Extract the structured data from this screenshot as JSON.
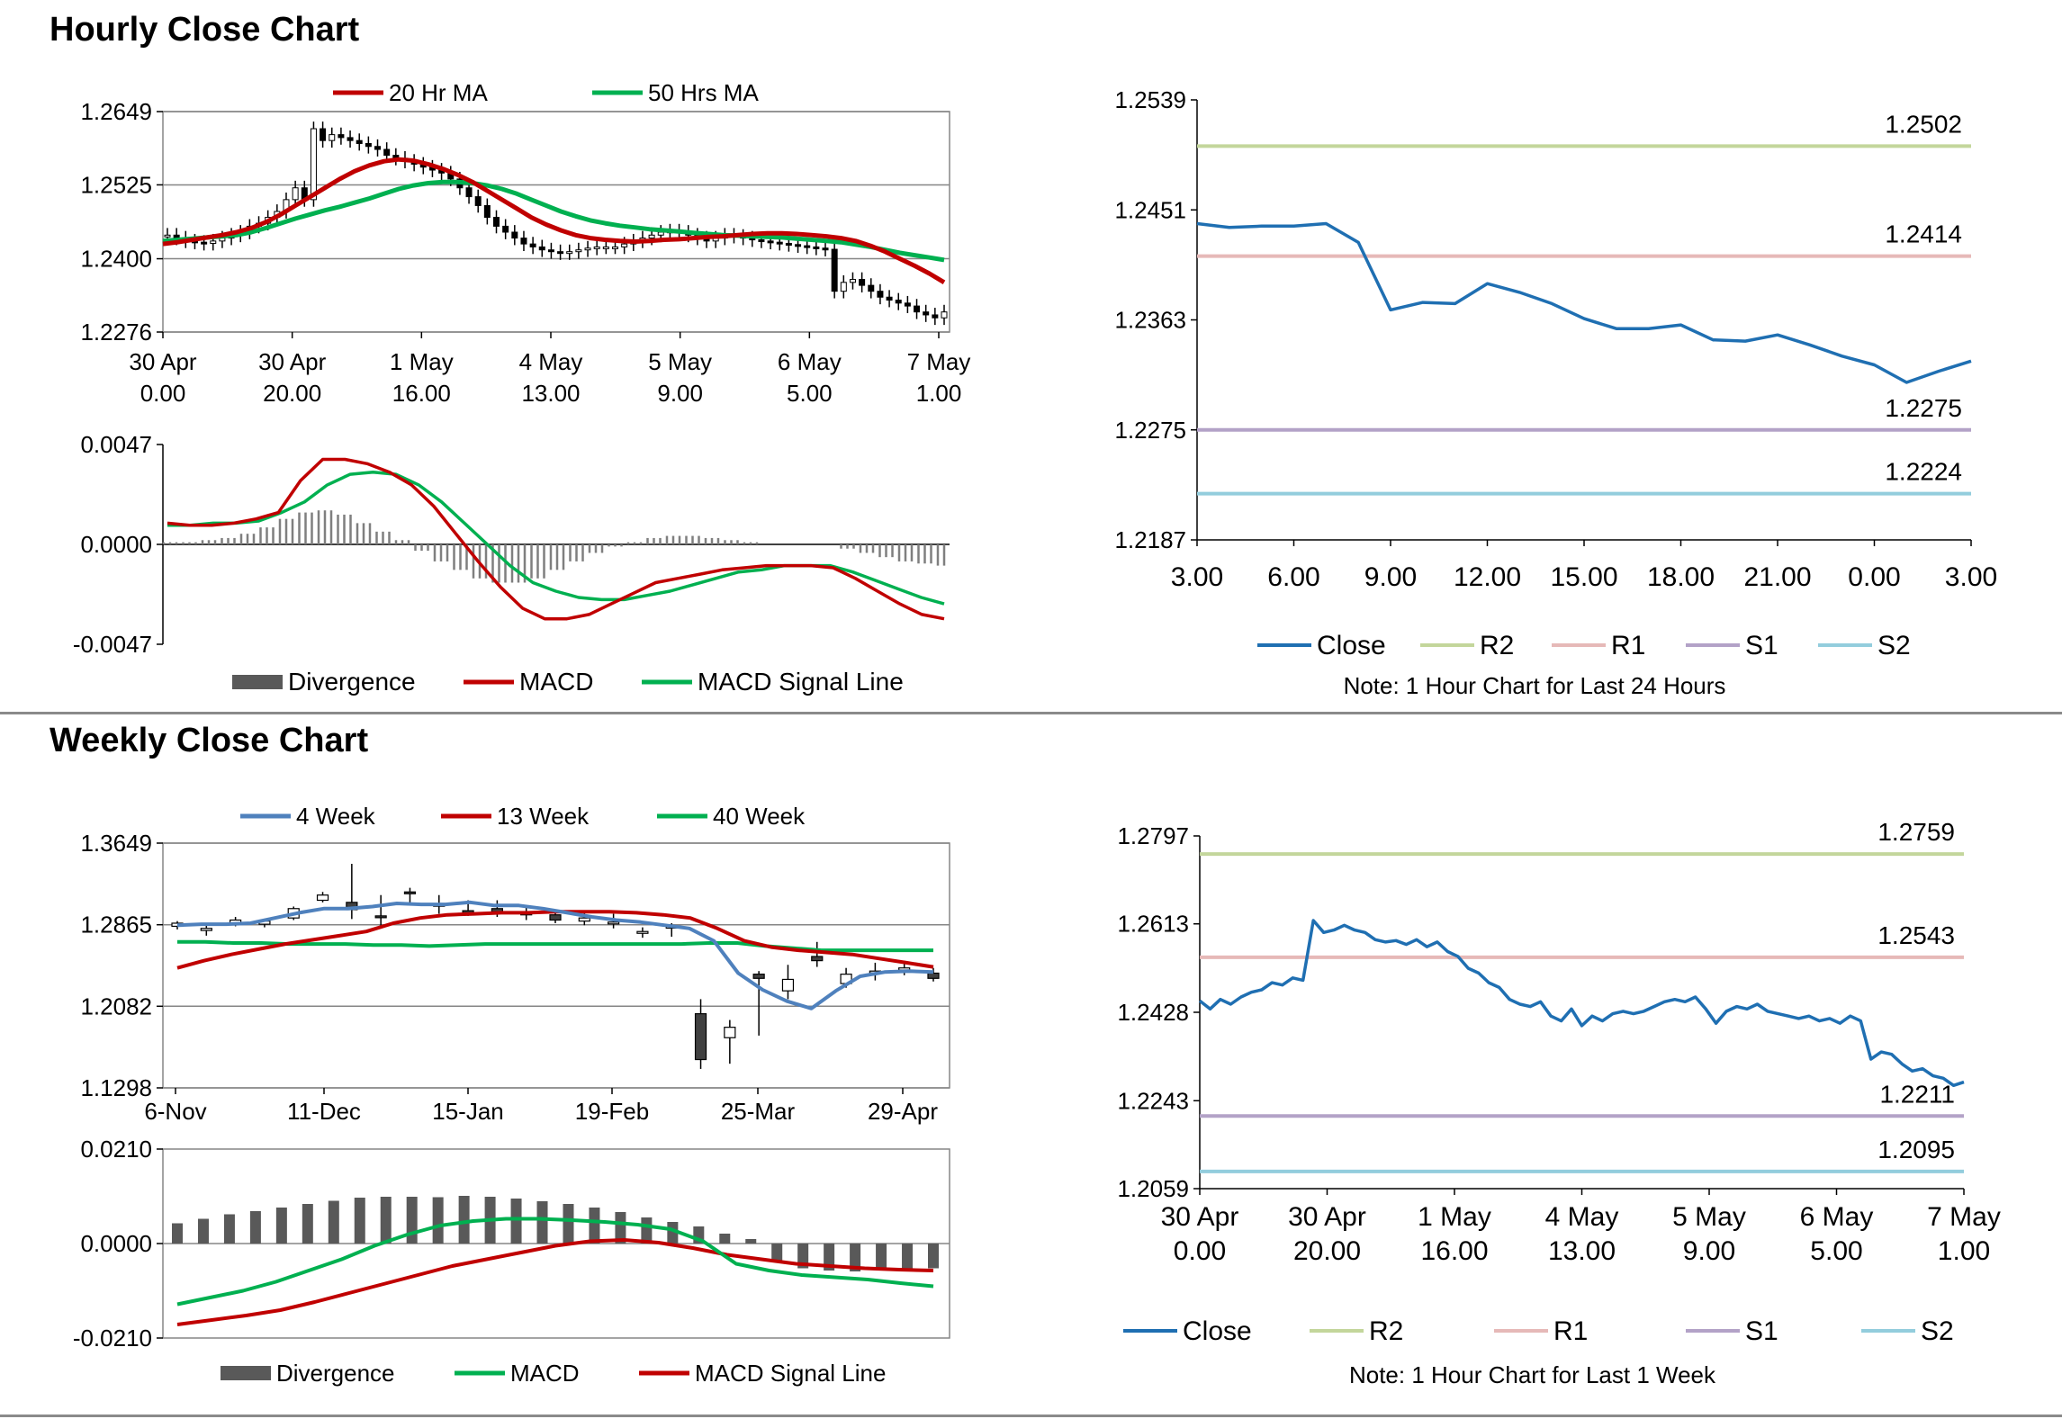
{
  "hourly_section": {
    "title": "Hourly Close Chart"
  },
  "weekly_section": {
    "title": "Weekly Close Chart"
  },
  "colors": {
    "red": "#c00000",
    "green": "#00b050",
    "blue": "#4f81bd",
    "close": "#1f6fb2",
    "r2": "#c3d69b",
    "r1": "#e6b9b8",
    "s1": "#b3a2c7",
    "s2": "#93cddd",
    "grid": "#868686",
    "bar": "#595959"
  },
  "chart_data": [
    {
      "id": "hourly_price",
      "type": "candlestick",
      "legend": [
        "20 Hr MA",
        "50 Hrs MA"
      ],
      "y_ticks": [
        "1.2649",
        "1.2525",
        "1.2400",
        "1.2276"
      ],
      "ylim": [
        1.2276,
        1.2649
      ],
      "x_ticks": [
        [
          "30 Apr",
          "0.00"
        ],
        [
          "30 Apr",
          "20.00"
        ],
        [
          "1 May",
          "16.00"
        ],
        [
          "4 May",
          "13.00"
        ],
        [
          "5 May",
          "9.00"
        ],
        [
          "6 May",
          "5.00"
        ],
        [
          "7 May",
          "1.00"
        ]
      ],
      "close": [
        1.244,
        1.2435,
        1.243,
        1.2428,
        1.2426,
        1.243,
        1.2435,
        1.244,
        1.2445,
        1.2455,
        1.246,
        1.247,
        1.248,
        1.25,
        1.252,
        1.25,
        1.262,
        1.26,
        1.261,
        1.2605,
        1.26,
        1.2595,
        1.259,
        1.2585,
        1.2575,
        1.257,
        1.2565,
        1.256,
        1.2555,
        1.255,
        1.2545,
        1.2535,
        1.252,
        1.2505,
        1.249,
        1.247,
        1.2455,
        1.2445,
        1.2435,
        1.2425,
        1.242,
        1.2415,
        1.2412,
        1.241,
        1.2412,
        1.2415,
        1.2418,
        1.242,
        1.242,
        1.242,
        1.2425,
        1.243,
        1.2435,
        1.244,
        1.2445,
        1.2447,
        1.2445,
        1.244,
        1.2435,
        1.243,
        1.2435,
        1.244,
        1.2438,
        1.2435,
        1.2432,
        1.243,
        1.2428,
        1.2426,
        1.2424,
        1.2422,
        1.242,
        1.2418,
        1.2416,
        1.2345,
        1.236,
        1.2365,
        1.2355,
        1.2345,
        1.2335,
        1.233,
        1.2325,
        1.232,
        1.231,
        1.2305,
        1.23,
        1.231
      ],
      "series": [
        {
          "name": "20 Hr MA",
          "values": [
            1.2425,
            1.2428,
            1.2432,
            1.2436,
            1.244,
            1.2445,
            1.2452,
            1.2462,
            1.2475,
            1.249,
            1.2505,
            1.252,
            1.2535,
            1.2548,
            1.2558,
            1.2565,
            1.2568,
            1.2566,
            1.256,
            1.2552,
            1.2542,
            1.253,
            1.2515,
            1.25,
            1.2485,
            1.247,
            1.2458,
            1.2448,
            1.244,
            1.2435,
            1.2432,
            1.243,
            1.2429,
            1.243,
            1.2432,
            1.2433,
            1.2435,
            1.2437,
            1.2438,
            1.244,
            1.2442,
            1.2443,
            1.2443,
            1.2442,
            1.244,
            1.2438,
            1.2435,
            1.243,
            1.2422,
            1.2412,
            1.24,
            1.2388,
            1.2375,
            1.236
          ]
        },
        {
          "name": "50 Hrs MA",
          "values": [
            1.243,
            1.2432,
            1.2434,
            1.2436,
            1.2438,
            1.244,
            1.2445,
            1.2452,
            1.246,
            1.2468,
            1.2475,
            1.2482,
            1.2488,
            1.2495,
            1.2502,
            1.251,
            1.2518,
            1.2524,
            1.2528,
            1.253,
            1.253,
            1.2528,
            1.2524,
            1.2518,
            1.251,
            1.25,
            1.249,
            1.248,
            1.2472,
            1.2465,
            1.246,
            1.2456,
            1.2453,
            1.245,
            1.2448,
            1.2446,
            1.2444,
            1.2442,
            1.244,
            1.2439,
            1.2438,
            1.2437,
            1.2436,
            1.2434,
            1.2432,
            1.243,
            1.2428,
            1.2424,
            1.242,
            1.2415,
            1.241,
            1.2406,
            1.2402,
            1.2398
          ]
        }
      ]
    },
    {
      "id": "hourly_macd",
      "type": "bar+line",
      "legend": [
        "Divergence",
        "MACD",
        "MACD Signal Line"
      ],
      "y_ticks": [
        "0.0047",
        "0.0000",
        "-0.0047"
      ],
      "ylim": [
        -0.0047,
        0.0047
      ],
      "divergence": [
        0.0001,
        0.0001,
        0.0002,
        0.0003,
        0.0005,
        0.0008,
        0.0012,
        0.0015,
        0.0016,
        0.0014,
        0.001,
        0.0006,
        0.0002,
        -0.0003,
        -0.0008,
        -0.0012,
        -0.0016,
        -0.0018,
        -0.0018,
        -0.0016,
        -0.0012,
        -0.0008,
        -0.0004,
        -0.0001,
        0.0001,
        0.0003,
        0.0004,
        0.0004,
        0.0003,
        0.0002,
        0.0001,
        0.0,
        0.0,
        0.0,
        0.0,
        -0.0002,
        -0.0004,
        -0.0006,
        -0.0008,
        -0.0009,
        -0.001
      ],
      "series": [
        {
          "name": "MACD",
          "values": [
            0.001,
            0.0009,
            0.0009,
            0.001,
            0.0012,
            0.0015,
            0.003,
            0.004,
            0.004,
            0.0038,
            0.0034,
            0.0028,
            0.0018,
            0.0005,
            -0.0008,
            -0.002,
            -0.003,
            -0.0035,
            -0.0035,
            -0.0033,
            -0.0028,
            -0.0023,
            -0.0018,
            -0.0016,
            -0.0014,
            -0.0012,
            -0.0011,
            -0.001,
            -0.001,
            -0.001,
            -0.0011,
            -0.0016,
            -0.0022,
            -0.0028,
            -0.0033,
            -0.0035
          ]
        },
        {
          "name": "MACD Signal Line",
          "values": [
            0.0009,
            0.0009,
            0.001,
            0.001,
            0.0011,
            0.0015,
            0.002,
            0.0028,
            0.0033,
            0.0034,
            0.0033,
            0.0028,
            0.002,
            0.001,
            0.0,
            -0.001,
            -0.0018,
            -0.0022,
            -0.0025,
            -0.0026,
            -0.0026,
            -0.0024,
            -0.0022,
            -0.0019,
            -0.0016,
            -0.0013,
            -0.0012,
            -0.001,
            -0.001,
            -0.001,
            -0.0013,
            -0.0017,
            -0.0021,
            -0.0025,
            -0.0028
          ]
        }
      ]
    },
    {
      "id": "hourly_24h",
      "type": "line",
      "y_ticks": [
        "1.2539",
        "1.2451",
        "1.2363",
        "1.2275",
        "1.2187"
      ],
      "ylim": [
        1.2187,
        1.2539
      ],
      "x_ticks": [
        "3.00",
        "6.00",
        "9.00",
        "12.00",
        "15.00",
        "18.00",
        "21.00",
        "0.00",
        "3.00"
      ],
      "levels": [
        {
          "name": "R2",
          "value": 1.2502,
          "label": "1.2502"
        },
        {
          "name": "R1",
          "value": 1.2414,
          "label": "1.2414"
        },
        {
          "name": "S1",
          "value": 1.2275,
          "label": "1.2275"
        },
        {
          "name": "S2",
          "value": 1.2224,
          "label": "1.2224"
        }
      ],
      "close": [
        1.244,
        1.2437,
        1.2438,
        1.2438,
        1.244,
        1.2425,
        1.2371,
        1.2377,
        1.2376,
        1.2392,
        1.2385,
        1.2376,
        1.2364,
        1.2356,
        1.2356,
        1.2359,
        1.2347,
        1.2346,
        1.2351,
        1.2343,
        1.2334,
        1.2327,
        1.2313,
        1.2322,
        1.233
      ],
      "legend": [
        "Close",
        "R2",
        "R1",
        "S1",
        "S2"
      ],
      "note": "Note: 1 Hour Chart for Last 24 Hours"
    },
    {
      "id": "weekly_price",
      "type": "candlestick",
      "legend": [
        "4 Week",
        "13 Week",
        "40 Week"
      ],
      "y_ticks": [
        "1.3649",
        "1.2865",
        "1.2082",
        "1.1298"
      ],
      "ylim": [
        1.1298,
        1.3649
      ],
      "x_ticks": [
        "6-Nov",
        "11-Dec",
        "15-Jan",
        "19-Feb",
        "25-Mar",
        "29-Apr"
      ],
      "candles": [
        [
          1.285,
          1.288,
          1.282,
          1.29
        ],
        [
          1.281,
          1.283,
          1.276,
          1.286
        ],
        [
          1.288,
          1.291,
          1.285,
          1.294
        ],
        [
          1.287,
          1.29,
          1.284,
          1.292
        ],
        [
          1.293,
          1.302,
          1.291,
          1.304
        ],
        [
          1.31,
          1.315,
          1.308,
          1.318
        ],
        [
          1.308,
          1.301,
          1.292,
          1.345
        ],
        [
          1.295,
          1.294,
          1.283,
          1.315
        ],
        [
          1.318,
          1.317,
          1.305,
          1.322
        ],
        [
          1.306,
          1.305,
          1.297,
          1.315
        ],
        [
          1.3,
          1.298,
          1.295,
          1.31
        ],
        [
          1.302,
          1.299,
          1.294,
          1.31
        ],
        [
          1.298,
          1.296,
          1.291,
          1.305
        ],
        [
          1.296,
          1.291,
          1.288,
          1.3
        ],
        [
          1.29,
          1.293,
          1.286,
          1.298
        ],
        [
          1.288,
          1.289,
          1.283,
          1.297
        ],
        [
          1.279,
          1.28,
          1.274,
          1.284
        ],
        [
          1.284,
          1.285,
          1.275,
          1.288
        ],
        [
          1.201,
          1.157,
          1.148,
          1.215
        ],
        [
          1.178,
          1.188,
          1.153,
          1.195
        ],
        [
          1.239,
          1.235,
          1.18,
          1.242
        ],
        [
          1.223,
          1.234,
          1.215,
          1.248
        ],
        [
          1.256,
          1.252,
          1.246,
          1.27
        ],
        [
          1.23,
          1.239,
          1.226,
          1.245
        ],
        [
          1.241,
          1.242,
          1.233,
          1.25
        ],
        [
          1.243,
          1.245,
          1.238,
          1.252
        ],
        [
          1.24,
          1.235,
          1.232,
          1.245
        ]
      ],
      "series": [
        {
          "name": "4 Week",
          "values": [
            1.286,
            1.287,
            1.287,
            1.288,
            1.293,
            1.298,
            1.302,
            1.302,
            1.304,
            1.307,
            1.306,
            1.306,
            1.308,
            1.305,
            1.305,
            1.302,
            1.298,
            1.294,
            1.291,
            1.289,
            1.286,
            1.283,
            1.271,
            1.24,
            1.224,
            1.213,
            1.206,
            1.223,
            1.237,
            1.241,
            1.242,
            1.241
          ]
        },
        {
          "name": "13 Week",
          "values": [
            1.245,
            1.252,
            1.258,
            1.263,
            1.268,
            1.272,
            1.276,
            1.28,
            1.288,
            1.293,
            1.296,
            1.297,
            1.298,
            1.298,
            1.299,
            1.299,
            1.299,
            1.298,
            1.296,
            1.293,
            1.283,
            1.271,
            1.265,
            1.262,
            1.26,
            1.258,
            1.254,
            1.25,
            1.246
          ]
        },
        {
          "name": "40 Week",
          "values": [
            1.27,
            1.27,
            1.269,
            1.269,
            1.268,
            1.268,
            1.268,
            1.267,
            1.267,
            1.266,
            1.267,
            1.268,
            1.268,
            1.268,
            1.268,
            1.268,
            1.268,
            1.268,
            1.268,
            1.269,
            1.269,
            1.266,
            1.264,
            1.262,
            1.262,
            1.262,
            1.262,
            1.262
          ]
        }
      ]
    },
    {
      "id": "weekly_macd",
      "type": "bar+line",
      "legend": [
        "Divergence",
        "MACD",
        "MACD Signal Line"
      ],
      "y_ticks": [
        "0.0210",
        "0.0000",
        "-0.0210"
      ],
      "ylim": [
        -0.021,
        0.021
      ],
      "divergence": [
        0.0045,
        0.0055,
        0.0065,
        0.0072,
        0.008,
        0.0088,
        0.0095,
        0.0102,
        0.0104,
        0.0104,
        0.0103,
        0.0106,
        0.0104,
        0.01,
        0.0094,
        0.0088,
        0.008,
        0.007,
        0.0058,
        0.0048,
        0.0038,
        0.0022,
        0.001,
        -0.004,
        -0.0055,
        -0.006,
        -0.0062,
        -0.006,
        -0.0058,
        -0.0055
      ],
      "series": [
        {
          "name": "MACD",
          "values": [
            -0.0135,
            -0.012,
            -0.0105,
            -0.0085,
            -0.006,
            -0.0035,
            -0.0005,
            0.002,
            0.004,
            0.005,
            0.0055,
            0.0055,
            0.0052,
            0.0048,
            0.0042,
            0.0032,
            0.0005,
            -0.0045,
            -0.006,
            -0.007,
            -0.0075,
            -0.008,
            -0.0088,
            -0.0095
          ]
        },
        {
          "name": "MACD Signal Line",
          "values": [
            -0.018,
            -0.017,
            -0.016,
            -0.0148,
            -0.013,
            -0.011,
            -0.009,
            -0.007,
            -0.005,
            -0.0035,
            -0.002,
            -0.0005,
            0.0005,
            0.0008,
            0.0002,
            -0.001,
            -0.0025,
            -0.0035,
            -0.0045,
            -0.005,
            -0.0055,
            -0.0058,
            -0.006
          ]
        }
      ]
    },
    {
      "id": "hourly_1w",
      "type": "line",
      "y_ticks": [
        "1.2797",
        "1.2613",
        "1.2428",
        "1.2243",
        "1.2059"
      ],
      "ylim": [
        1.2059,
        1.2797
      ],
      "x_ticks": [
        [
          "30 Apr",
          "0.00"
        ],
        [
          "30 Apr",
          "20.00"
        ],
        [
          "1 May",
          "16.00"
        ],
        [
          "4 May",
          "13.00"
        ],
        [
          "5 May",
          "9.00"
        ],
        [
          "6 May",
          "5.00"
        ],
        [
          "7 May",
          "1.00"
        ]
      ],
      "levels": [
        {
          "name": "R2",
          "value": 1.2759,
          "label": "1.2759"
        },
        {
          "name": "R1",
          "value": 1.2543,
          "label": "1.2543"
        },
        {
          "name": "S1",
          "value": 1.2211,
          "label": "1.2211"
        },
        {
          "name": "S2",
          "value": 1.2095,
          "label": "1.2095"
        }
      ],
      "close": [
        1.2452,
        1.2435,
        1.2455,
        1.2445,
        1.246,
        1.247,
        1.2475,
        1.249,
        1.2485,
        1.25,
        1.2495,
        1.262,
        1.2595,
        1.26,
        1.261,
        1.26,
        1.2595,
        1.258,
        1.2575,
        1.2578,
        1.257,
        1.258,
        1.2565,
        1.2575,
        1.2555,
        1.2545,
        1.252,
        1.251,
        1.249,
        1.248,
        1.2455,
        1.2445,
        1.244,
        1.245,
        1.242,
        1.241,
        1.2435,
        1.24,
        1.242,
        1.241,
        1.2425,
        1.243,
        1.2425,
        1.243,
        1.244,
        1.245,
        1.2455,
        1.245,
        1.246,
        1.2435,
        1.2405,
        1.243,
        1.244,
        1.2435,
        1.2445,
        1.243,
        1.2425,
        1.242,
        1.2415,
        1.242,
        1.241,
        1.2415,
        1.2405,
        1.242,
        1.241,
        1.233,
        1.2345,
        1.234,
        1.232,
        1.2305,
        1.231,
        1.2295,
        1.229,
        1.2275,
        1.2282
      ],
      "legend": [
        "Close",
        "R2",
        "R1",
        "S1",
        "S2"
      ],
      "note": "Note: 1 Hour Chart for Last 1 Week"
    }
  ]
}
